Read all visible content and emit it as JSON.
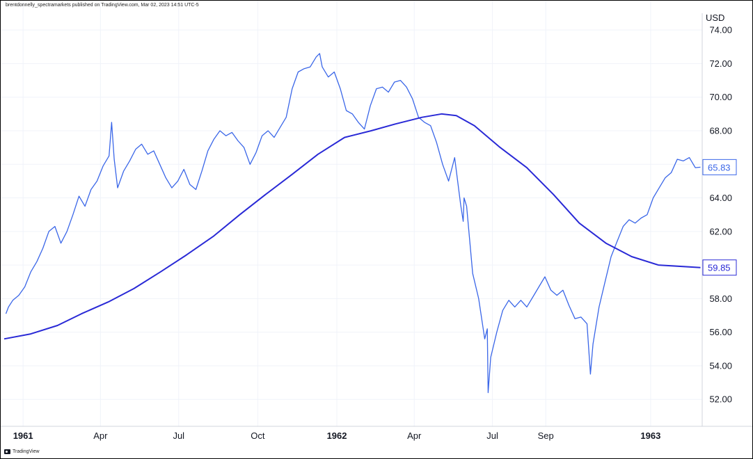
{
  "header": {
    "attribution": "brentdonnelly_spectramarkets published on TradingView.com, Mar 02, 2023 14:51 UTC-5"
  },
  "footer": {
    "logo_text": "TradingView"
  },
  "colors": {
    "price_line": "#3a66e8",
    "ma_line": "#2929d6",
    "grid": "#f0f3fa",
    "text": "#131722",
    "axis_border": "#d1d4dc"
  },
  "chart_data": {
    "type": "line",
    "ylabel": "USD",
    "ylim": [
      50,
      75
    ],
    "y_ticks": [
      52,
      54,
      56,
      58,
      60,
      62,
      64,
      66,
      68,
      70,
      72,
      74
    ],
    "x_ticks": [
      {
        "label": "1961",
        "date": "1961-01-01",
        "bold": true
      },
      {
        "label": "Apr",
        "date": "1961-04-01",
        "bold": false
      },
      {
        "label": "Jul",
        "date": "1961-07-01",
        "bold": false
      },
      {
        "label": "Oct",
        "date": "1961-10-01",
        "bold": false
      },
      {
        "label": "1962",
        "date": "1962-01-01",
        "bold": true
      },
      {
        "label": "Apr",
        "date": "1962-04-01",
        "bold": false
      },
      {
        "label": "Jul",
        "date": "1962-07-01",
        "bold": false
      },
      {
        "label": "Sep",
        "date": "1962-09-01",
        "bold": false
      },
      {
        "label": "1963",
        "date": "1963-01-01",
        "bold": true
      }
    ],
    "xlim": [
      "1960-12-10",
      "1963-03-02"
    ],
    "grid": true,
    "series": [
      {
        "role": "price",
        "last_value_label": "65.83",
        "points": [
          [
            "1960-12-12",
            57.1
          ],
          [
            "1960-12-15",
            57.5
          ],
          [
            "1960-12-20",
            57.9
          ],
          [
            "1960-12-27",
            58.2
          ],
          [
            "1961-01-03",
            58.7
          ],
          [
            "1961-01-10",
            59.6
          ],
          [
            "1961-01-17",
            60.2
          ],
          [
            "1961-01-24",
            61.0
          ],
          [
            "1961-01-31",
            62.0
          ],
          [
            "1961-02-07",
            62.3
          ],
          [
            "1961-02-14",
            61.3
          ],
          [
            "1961-02-21",
            62.0
          ],
          [
            "1961-02-28",
            63.0
          ],
          [
            "1961-03-07",
            64.1
          ],
          [
            "1961-03-14",
            63.5
          ],
          [
            "1961-03-21",
            64.5
          ],
          [
            "1961-03-28",
            65.0
          ],
          [
            "1961-04-04",
            65.9
          ],
          [
            "1961-04-11",
            66.5
          ],
          [
            "1961-04-14",
            68.5
          ],
          [
            "1961-04-17",
            66.3
          ],
          [
            "1961-04-21",
            64.6
          ],
          [
            "1961-04-28",
            65.6
          ],
          [
            "1961-05-05",
            66.2
          ],
          [
            "1961-05-12",
            66.9
          ],
          [
            "1961-05-19",
            67.2
          ],
          [
            "1961-05-26",
            66.6
          ],
          [
            "1961-06-02",
            66.8
          ],
          [
            "1961-06-09",
            66.0
          ],
          [
            "1961-06-16",
            65.2
          ],
          [
            "1961-06-23",
            64.6
          ],
          [
            "1961-06-30",
            65.0
          ],
          [
            "1961-07-07",
            65.7
          ],
          [
            "1961-07-14",
            64.8
          ],
          [
            "1961-07-21",
            64.5
          ],
          [
            "1961-07-28",
            65.6
          ],
          [
            "1961-08-04",
            66.8
          ],
          [
            "1961-08-11",
            67.5
          ],
          [
            "1961-08-18",
            68.0
          ],
          [
            "1961-08-25",
            67.7
          ],
          [
            "1961-09-01",
            67.9
          ],
          [
            "1961-09-08",
            67.4
          ],
          [
            "1961-09-15",
            67.0
          ],
          [
            "1961-09-22",
            66.0
          ],
          [
            "1961-09-29",
            66.7
          ],
          [
            "1961-10-06",
            67.7
          ],
          [
            "1961-10-13",
            68.0
          ],
          [
            "1961-10-20",
            67.6
          ],
          [
            "1961-10-27",
            68.2
          ],
          [
            "1961-11-03",
            68.8
          ],
          [
            "1961-11-10",
            70.5
          ],
          [
            "1961-11-17",
            71.5
          ],
          [
            "1961-11-24",
            71.7
          ],
          [
            "1961-12-01",
            71.8
          ],
          [
            "1961-12-08",
            72.4
          ],
          [
            "1961-12-12",
            72.6
          ],
          [
            "1961-12-15",
            71.8
          ],
          [
            "1961-12-22",
            71.2
          ],
          [
            "1961-12-29",
            71.5
          ],
          [
            "1962-01-05",
            70.5
          ],
          [
            "1962-01-12",
            69.2
          ],
          [
            "1962-01-19",
            69.0
          ],
          [
            "1962-01-26",
            68.5
          ],
          [
            "1962-02-02",
            68.1
          ],
          [
            "1962-02-09",
            69.5
          ],
          [
            "1962-02-16",
            70.5
          ],
          [
            "1962-02-23",
            70.6
          ],
          [
            "1962-03-02",
            70.3
          ],
          [
            "1962-03-09",
            70.9
          ],
          [
            "1962-03-16",
            71.0
          ],
          [
            "1962-03-23",
            70.6
          ],
          [
            "1962-03-30",
            69.9
          ],
          [
            "1962-04-06",
            68.8
          ],
          [
            "1962-04-13",
            68.5
          ],
          [
            "1962-04-20",
            68.3
          ],
          [
            "1962-04-27",
            67.3
          ],
          [
            "1962-05-04",
            66.0
          ],
          [
            "1962-05-11",
            65.0
          ],
          [
            "1962-05-18",
            66.4
          ],
          [
            "1962-05-25",
            63.6
          ],
          [
            "1962-05-28",
            62.6
          ],
          [
            "1962-05-29",
            64.0
          ],
          [
            "1962-06-01",
            63.5
          ],
          [
            "1962-06-08",
            59.5
          ],
          [
            "1962-06-15",
            58.0
          ],
          [
            "1962-06-22",
            55.6
          ],
          [
            "1962-06-25",
            56.2
          ],
          [
            "1962-06-26",
            52.4
          ],
          [
            "1962-06-29",
            54.5
          ],
          [
            "1962-07-06",
            56.0
          ],
          [
            "1962-07-13",
            57.3
          ],
          [
            "1962-07-20",
            57.9
          ],
          [
            "1962-07-27",
            57.5
          ],
          [
            "1962-08-03",
            57.9
          ],
          [
            "1962-08-10",
            57.5
          ],
          [
            "1962-08-17",
            58.1
          ],
          [
            "1962-08-24",
            58.7
          ],
          [
            "1962-08-31",
            59.3
          ],
          [
            "1962-09-07",
            58.5
          ],
          [
            "1962-09-14",
            58.2
          ],
          [
            "1962-09-21",
            58.5
          ],
          [
            "1962-09-28",
            57.6
          ],
          [
            "1962-10-05",
            56.8
          ],
          [
            "1962-10-12",
            56.9
          ],
          [
            "1962-10-19",
            56.5
          ],
          [
            "1962-10-23",
            53.5
          ],
          [
            "1962-10-26",
            55.3
          ],
          [
            "1962-11-02",
            57.5
          ],
          [
            "1962-11-09",
            59.0
          ],
          [
            "1962-11-16",
            60.5
          ],
          [
            "1962-11-23",
            61.4
          ],
          [
            "1962-11-30",
            62.3
          ],
          [
            "1962-12-07",
            62.7
          ],
          [
            "1962-12-14",
            62.5
          ],
          [
            "1962-12-21",
            62.8
          ],
          [
            "1962-12-28",
            63.0
          ],
          [
            "1963-01-04",
            64.0
          ],
          [
            "1963-01-11",
            64.6
          ],
          [
            "1963-01-18",
            65.2
          ],
          [
            "1963-01-25",
            65.5
          ],
          [
            "1963-02-01",
            66.3
          ],
          [
            "1963-02-08",
            66.2
          ],
          [
            "1963-02-15",
            66.4
          ],
          [
            "1963-02-22",
            65.8
          ],
          [
            "1963-02-28",
            65.83
          ]
        ]
      },
      {
        "role": "moving-average",
        "last_value_label": "59.85",
        "points": [
          [
            "1960-12-10",
            55.6
          ],
          [
            "1961-01-10",
            55.9
          ],
          [
            "1961-02-10",
            56.4
          ],
          [
            "1961-03-10",
            57.1
          ],
          [
            "1961-04-10",
            57.8
          ],
          [
            "1961-05-10",
            58.6
          ],
          [
            "1961-06-10",
            59.6
          ],
          [
            "1961-07-10",
            60.6
          ],
          [
            "1961-08-10",
            61.7
          ],
          [
            "1961-09-10",
            63.0
          ],
          [
            "1961-10-10",
            64.2
          ],
          [
            "1961-11-10",
            65.4
          ],
          [
            "1961-12-10",
            66.6
          ],
          [
            "1962-01-10",
            67.6
          ],
          [
            "1962-02-10",
            68.0
          ],
          [
            "1962-03-10",
            68.4
          ],
          [
            "1962-04-10",
            68.8
          ],
          [
            "1962-05-03",
            69.0
          ],
          [
            "1962-05-20",
            68.9
          ],
          [
            "1962-06-10",
            68.3
          ],
          [
            "1962-07-10",
            67.0
          ],
          [
            "1962-08-10",
            65.8
          ],
          [
            "1962-09-10",
            64.2
          ],
          [
            "1962-10-10",
            62.5
          ],
          [
            "1962-11-10",
            61.3
          ],
          [
            "1962-12-10",
            60.5
          ],
          [
            "1963-01-10",
            60.0
          ],
          [
            "1963-02-28",
            59.85
          ]
        ]
      }
    ]
  }
}
